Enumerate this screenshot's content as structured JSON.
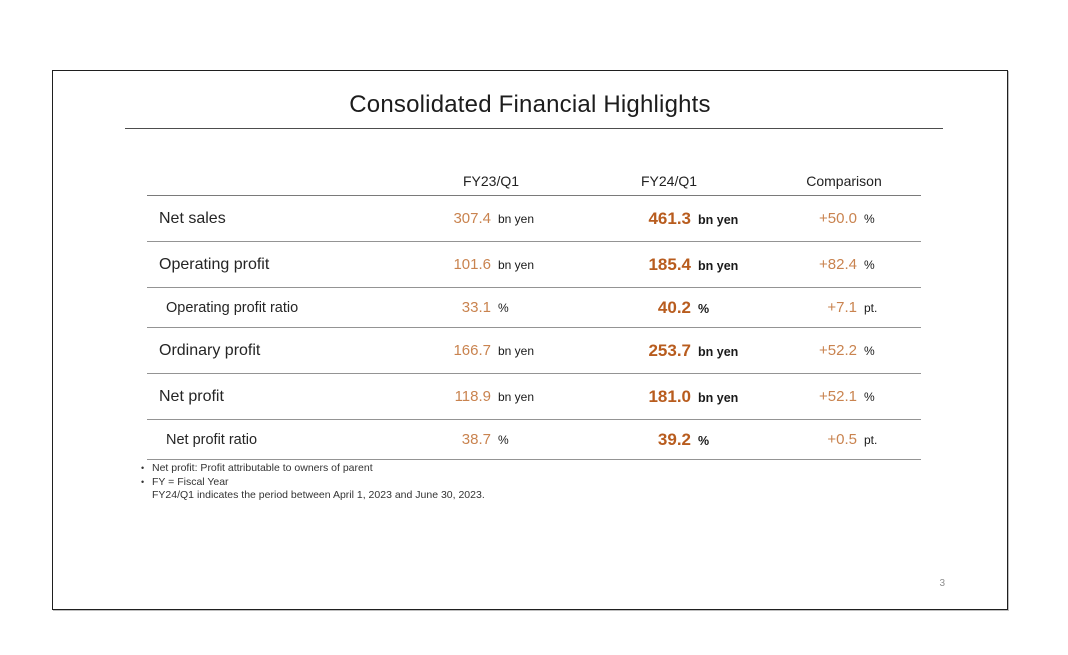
{
  "slide": {
    "title": "Consolidated Financial Highlights",
    "page_number": "3",
    "colors": {
      "value_regular_orange": "#c9834f",
      "value_bold_orange": "#b85c1e",
      "text": "#1a1a1a",
      "row_line": "#949494"
    },
    "table": {
      "columns": {
        "c1": "",
        "c2": "FY23/Q1",
        "c3": "FY24/Q1",
        "c4": "Comparison"
      },
      "rows": [
        {
          "label": "Net sales",
          "fy23": "307.4",
          "fy23_unit": "bn yen",
          "fy24": "461.3",
          "fy24_unit": "bn yen",
          "comp": "+50.0",
          "comp_unit": "%"
        },
        {
          "label": "Operating profit",
          "fy23": "101.6",
          "fy23_unit": "bn yen",
          "fy24": "185.4",
          "fy24_unit": "bn yen",
          "comp": "+82.4",
          "comp_unit": "%"
        },
        {
          "label": "Operating profit ratio",
          "fy23": "33.1",
          "fy23_unit": "%",
          "fy24": "40.2",
          "fy24_unit": "%",
          "comp": "+7.1",
          "comp_unit": "pt."
        },
        {
          "label": "Ordinary profit",
          "fy23": "166.7",
          "fy23_unit": "bn yen",
          "fy24": "253.7",
          "fy24_unit": "bn yen",
          "comp": "+52.2",
          "comp_unit": "%"
        },
        {
          "label": "Net profit",
          "fy23": "118.9",
          "fy23_unit": "bn yen",
          "fy24": "181.0",
          "fy24_unit": "bn yen",
          "comp": "+52.1",
          "comp_unit": "%"
        },
        {
          "label": "Net profit ratio",
          "fy23": "38.7",
          "fy23_unit": "%",
          "fy24": "39.2",
          "fy24_unit": "%",
          "comp": "+0.5",
          "comp_unit": "pt."
        }
      ]
    },
    "footnotes": {
      "bullet": "•",
      "line1": "Net profit: Profit attributable to owners of parent",
      "line2": "FY = Fiscal Year",
      "line3": "FY24/Q1 indicates the period between April 1, 2023 and June 30, 2023."
    }
  }
}
